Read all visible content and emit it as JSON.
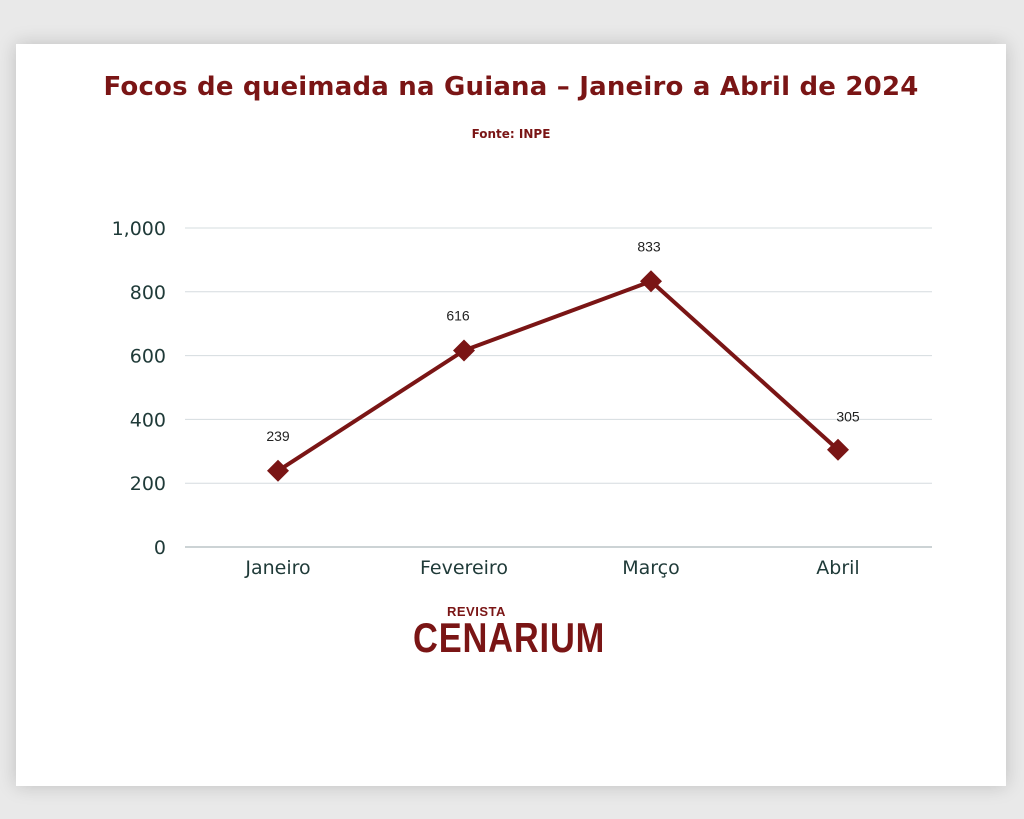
{
  "chart_data": {
    "type": "line",
    "title": "Focos de queimada na Guiana – Janeiro a Abril de 2024",
    "subtitle": "Fonte: INPE",
    "categories": [
      "Janeiro",
      "Fevereiro",
      "Março",
      "Abril"
    ],
    "series": [
      {
        "values": [
          239,
          616,
          833,
          305
        ]
      }
    ],
    "data_labels": [
      "239",
      "616",
      "833",
      "305"
    ],
    "y_ticks": [
      "0",
      "200",
      "400",
      "600",
      "800",
      "1,000"
    ],
    "y_tick_values": [
      0,
      200,
      400,
      600,
      800,
      1000
    ],
    "ylim": [
      0,
      1000
    ],
    "grid": true,
    "marker": "diamond",
    "colors": {
      "line": "#7a1515",
      "grid": "#d5dcdf",
      "text": "#1f3a38",
      "title": "#7a1515"
    }
  },
  "logo": {
    "top": "REVISTA",
    "main": "CENARIUM"
  }
}
